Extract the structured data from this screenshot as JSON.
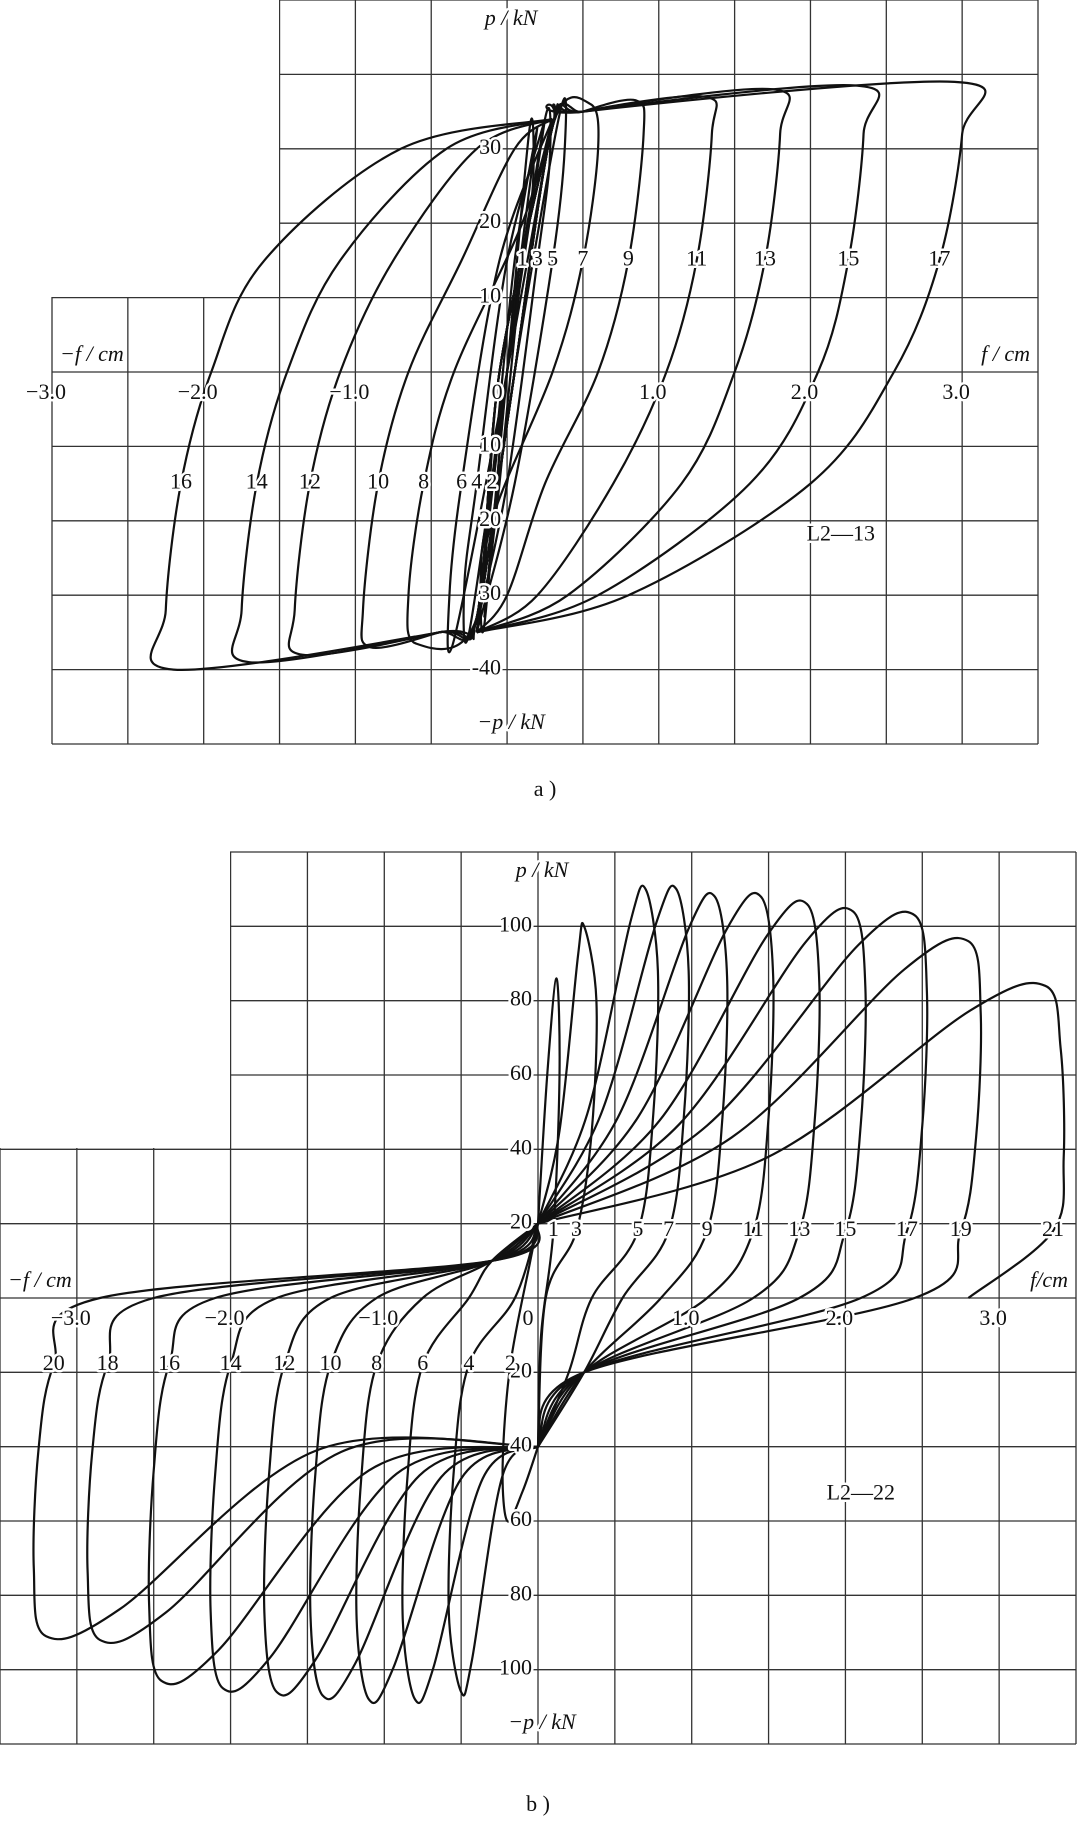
{
  "chart_data": [
    {
      "type": "line",
      "caption": "a )",
      "annotation": "L2—13",
      "color": "#111",
      "y_label": "p / kN",
      "y_label_neg": "−p / kN",
      "x_label_neg": "−f / cm",
      "x_label": "f / cm",
      "xlim": [
        -3.0,
        3.5
      ],
      "ylim": [
        -50,
        50
      ],
      "grid": true,
      "xgrid": [
        -3.0,
        -2.5,
        -2.0,
        -1.5,
        -1.0,
        -0.5,
        0,
        0.5,
        1.0,
        1.5,
        2.0,
        2.5,
        3.0,
        3.5
      ],
      "ygrid": [
        -50,
        -40,
        -30,
        -20,
        -10,
        0,
        10,
        20,
        30,
        40,
        50
      ],
      "xticks": [
        {
          "value": -3.0,
          "label": "−3.0"
        },
        {
          "value": -2.0,
          "label": "−2.0"
        },
        {
          "value": -1.0,
          "label": "−1.0"
        },
        0,
        {
          "value": 1.0,
          "label": "1.0"
        },
        {
          "value": 2.0,
          "label": "2.0"
        },
        {
          "value": 3.0,
          "label": "3.0"
        }
      ],
      "yticks": [
        30,
        20,
        10,
        {
          "value": -10,
          "label": "10"
        },
        {
          "value": -20,
          "label": "20"
        },
        {
          "value": -30,
          "label": "30"
        },
        {
          "value": -40,
          "label": "-40"
        }
      ],
      "series": [
        {
          "name": "1",
          "x": [
            -0.15,
            0.0,
            0.15,
            0.17,
            0.1,
            -0.05,
            -0.15
          ],
          "values": [
            -33,
            0,
            33,
            25,
            15,
            -15,
            -33
          ]
        },
        {
          "name": "2",
          "x": [
            0.2,
            0.0,
            -0.15,
            -0.17,
            -0.1,
            0.05,
            0.2
          ],
          "values": [
            33,
            0,
            -34,
            -25,
            -15,
            15,
            33
          ]
        },
        {
          "name": "3",
          "x": [
            -0.2,
            0.0,
            0.25,
            0.28,
            0.2,
            0.0,
            -0.2
          ],
          "values": [
            -34,
            0,
            34,
            28,
            15,
            -15,
            -34
          ]
        },
        {
          "name": "4",
          "x": [
            0.25,
            0.0,
            -0.25,
            -0.28,
            -0.2,
            0.0,
            0.25
          ],
          "values": [
            34,
            0,
            -35,
            -28,
            -15,
            15,
            34
          ]
        },
        {
          "name": "5",
          "x": [
            -0.2,
            0.05,
            0.35,
            0.38,
            0.3,
            0.05,
            -0.2
          ],
          "values": [
            -35,
            0,
            35,
            30,
            15,
            -15,
            -35
          ]
        },
        {
          "name": "6",
          "x": [
            0.3,
            0.0,
            -0.35,
            -0.38,
            -0.3,
            -0.05,
            0.3
          ],
          "values": [
            34,
            0,
            -36,
            -30,
            -15,
            15,
            34
          ]
        },
        {
          "name": "7",
          "x": [
            -0.2,
            0.05,
            0.3,
            0.55,
            0.6,
            0.5,
            0.3,
            -0.1,
            -0.2
          ],
          "values": [
            -35,
            0,
            33,
            36,
            30,
            15,
            0,
            -20,
            -35
          ]
        },
        {
          "name": "8",
          "x": [
            0.3,
            -0.05,
            -0.2,
            -0.6,
            -0.65,
            -0.55,
            -0.35,
            0.1,
            0.3
          ],
          "values": [
            34,
            0,
            -33,
            -36.5,
            -30,
            -15,
            0,
            20,
            34
          ]
        },
        {
          "name": "9",
          "x": [
            -0.2,
            0.05,
            0.3,
            0.5,
            0.85,
            0.9,
            0.8,
            0.6,
            0.25,
            0.0,
            -0.2
          ],
          "values": [
            -35,
            0,
            33,
            35,
            36.5,
            32,
            15,
            0,
            -15,
            -30,
            -35
          ]
        },
        {
          "name": "10",
          "x": [
            0.3,
            -0.05,
            -0.2,
            -0.45,
            -0.9,
            -0.95,
            -0.85,
            -0.65,
            -0.3,
            0.05,
            0.3
          ],
          "values": [
            34,
            0,
            -33,
            -35,
            -37,
            -32,
            -15,
            0,
            15,
            30,
            34
          ]
        },
        {
          "name": "11",
          "x": [
            -0.2,
            0.05,
            0.3,
            0.5,
            1.3,
            1.35,
            1.25,
            1.05,
            0.7,
            0.2,
            -0.2
          ],
          "values": [
            -35,
            0,
            33,
            35,
            37,
            32,
            15,
            0,
            -15,
            -30,
            -35
          ]
        },
        {
          "name": "12",
          "x": [
            0.3,
            -0.05,
            -0.2,
            -0.45,
            -1.35,
            -1.4,
            -1.3,
            -1.1,
            -0.75,
            -0.2,
            0.3
          ],
          "values": [
            34,
            0,
            -33,
            -35,
            -38,
            -32,
            -15,
            0,
            15,
            30,
            34
          ]
        },
        {
          "name": "13",
          "x": [
            -0.2,
            0.05,
            0.3,
            0.5,
            1.75,
            1.8,
            1.7,
            1.5,
            1.15,
            0.4,
            -0.2
          ],
          "values": [
            -35,
            0,
            33,
            35,
            38,
            32,
            15,
            0,
            -15,
            -30,
            -35
          ]
        },
        {
          "name": "14",
          "x": [
            0.3,
            -0.05,
            -0.2,
            -0.45,
            -1.7,
            -1.75,
            -1.65,
            -1.45,
            -1.1,
            -0.4,
            0.3
          ],
          "values": [
            34,
            0,
            -33,
            -35,
            -39,
            -32,
            -15,
            0,
            15,
            30,
            34
          ]
        },
        {
          "name": "15",
          "x": [
            -0.2,
            0.05,
            0.3,
            0.5,
            2.3,
            2.35,
            2.25,
            2.05,
            1.6,
            0.6,
            -0.2
          ],
          "values": [
            -35,
            0,
            33,
            35,
            38.5,
            32,
            15,
            0,
            -15,
            -30,
            -35
          ]
        },
        {
          "name": "16",
          "x": [
            0.3,
            -0.05,
            -0.2,
            -0.45,
            -2.2,
            -2.25,
            -2.15,
            -1.95,
            -1.6,
            -0.7,
            0.3
          ],
          "values": [
            34,
            0,
            -33,
            -35,
            -40,
            -32,
            -15,
            0,
            15,
            30,
            34
          ]
        },
        {
          "name": "17",
          "x": [
            -0.2,
            0.05,
            0.3,
            0.5,
            2.95,
            3.0,
            2.85,
            2.55,
            2.0,
            0.8,
            -0.2
          ],
          "values": [
            -35,
            0,
            33,
            35,
            39,
            32,
            15,
            0,
            -15,
            -30,
            -35
          ]
        }
      ]
    },
    {
      "type": "line",
      "caption": "b )",
      "annotation": "L2—22",
      "color": "#111",
      "y_label": "p / kN",
      "y_label_neg": "−p / kN",
      "x_label_neg": "−f / cm",
      "x_label": "f/cm",
      "xlim": [
        -3.5,
        3.5
      ],
      "ylim": [
        -120,
        120
      ],
      "grid": true,
      "xgrid": [
        -3.5,
        -3.0,
        -2.5,
        -2.0,
        -1.5,
        -1.0,
        -0.5,
        0,
        0.5,
        1.0,
        1.5,
        2.0,
        2.5,
        3.0,
        3.5
      ],
      "ygrid": [
        -120,
        -100,
        -80,
        -60,
        -40,
        -20,
        0,
        20,
        40,
        60,
        80,
        100,
        120
      ],
      "xticks": [
        {
          "value": -3.0,
          "label": "−3.0"
        },
        {
          "value": -2.0,
          "label": "−2.0"
        },
        {
          "value": -1.0,
          "label": "−1.0"
        },
        0,
        {
          "value": 1.0,
          "label": "1.0"
        },
        {
          "value": 2.0,
          "label": "2.0"
        },
        {
          "value": 3.0,
          "label": "3.0"
        }
      ],
      "yticks": [
        100,
        80,
        60,
        40,
        20,
        {
          "value": -20,
          "label": "20"
        },
        {
          "value": -40,
          "label": "40"
        },
        {
          "value": -60,
          "label": "60"
        },
        {
          "value": -80,
          "label": "80"
        },
        {
          "value": -100,
          "label": "100"
        }
      ],
      "series": [
        {
          "name": "1",
          "x": [
            0,
            0.06,
            0.12,
            0.14,
            0.1,
            0.02,
            0
          ],
          "values": [
            20,
            60,
            86,
            60,
            18,
            -10,
            -40
          ]
        },
        {
          "name": "2",
          "x": [
            0,
            -0.1,
            -0.2,
            -0.23,
            -0.18,
            -0.05,
            0
          ],
          "values": [
            -40,
            -52,
            -60,
            -45,
            -18,
            10,
            20
          ]
        },
        {
          "name": "3",
          "x": [
            0,
            0.14,
            0.26,
            0.3,
            0.38,
            0.35,
            0.25,
            0.05,
            0
          ],
          "values": [
            20,
            45,
            92,
            100,
            80,
            45,
            18,
            0,
            -40
          ]
        },
        {
          "name": "4",
          "x": [
            0,
            -0.23,
            -0.43,
            -0.5,
            -0.58,
            -0.55,
            -0.45,
            -0.15,
            0
          ],
          "values": [
            -40,
            -47.7,
            -97.5,
            -106,
            -84.8,
            -47.7,
            -18,
            0,
            20
          ]
        },
        {
          "name": "5",
          "x": [
            0,
            0.32,
            0.6,
            0.7,
            0.78,
            0.75,
            0.65,
            0.35,
            0.2,
            0
          ],
          "values": [
            20,
            49.5,
            101,
            110,
            88,
            49.5,
            18,
            0,
            -20,
            -40
          ]
        },
        {
          "name": "6",
          "x": [
            0,
            -0.36,
            -0.68,
            -0.8,
            -0.88,
            -0.85,
            -0.75,
            -0.45,
            -0.3,
            0
          ],
          "values": [
            -40,
            -48.6,
            -99.4,
            -108,
            -86.4,
            -48.6,
            -18,
            0,
            10,
            20
          ]
        },
        {
          "name": "7",
          "x": [
            0,
            0.41,
            0.77,
            0.9,
            0.98,
            0.95,
            0.85,
            0.55,
            0.3,
            0
          ],
          "values": [
            20,
            49.5,
            101,
            110,
            88,
            49.5,
            18,
            0,
            -20,
            -40
          ]
        },
        {
          "name": "8",
          "x": [
            0,
            -0.5,
            -0.94,
            -1.1,
            -1.18,
            -1.15,
            -1.05,
            -0.75,
            -0.3,
            0
          ],
          "values": [
            -40,
            -48.6,
            -99.4,
            -108,
            -86.4,
            -48.6,
            -18,
            0,
            10,
            20
          ]
        },
        {
          "name": "9",
          "x": [
            0,
            0.52,
            0.98,
            1.15,
            1.23,
            1.2,
            1.1,
            0.8,
            0.3,
            0
          ],
          "values": [
            20,
            48.6,
            99.4,
            108,
            86.4,
            48.6,
            18,
            0,
            -20,
            -40
          ]
        },
        {
          "name": "10",
          "x": [
            0,
            -0.63,
            -1.19,
            -1.4,
            -1.48,
            -1.45,
            -1.35,
            -1.05,
            -0.3,
            0
          ],
          "values": [
            -40,
            -48.2,
            -98.4,
            -107,
            -85.6,
            -48.2,
            -18,
            0,
            10,
            20
          ]
        },
        {
          "name": "11",
          "x": [
            0,
            0.65,
            1.23,
            1.45,
            1.53,
            1.5,
            1.4,
            1.1,
            0.3,
            0
          ],
          "values": [
            20,
            48.6,
            99.4,
            108,
            86.4,
            48.6,
            18,
            0,
            -20,
            -40
          ]
        },
        {
          "name": "12",
          "x": [
            0,
            -0.77,
            -1.45,
            -1.7,
            -1.78,
            -1.75,
            -1.65,
            -1.35,
            -0.3,
            0
          ],
          "values": [
            -40,
            -47.7,
            -97.5,
            -106,
            -84.8,
            -47.7,
            -18,
            0,
            10,
            20
          ]
        },
        {
          "name": "13",
          "x": [
            0,
            0.79,
            1.49,
            1.75,
            1.83,
            1.8,
            1.7,
            1.4,
            0.3,
            0
          ],
          "values": [
            20,
            47.7,
            97.5,
            106,
            84.8,
            47.7,
            18,
            0,
            -20,
            -40
          ]
        },
        {
          "name": "14",
          "x": [
            0,
            -0.92,
            -1.74,
            -2.05,
            -2.13,
            -2.1,
            -2.0,
            -1.7,
            -0.3,
            0
          ],
          "values": [
            -40,
            -47.3,
            -96.6,
            -105,
            -84,
            -47.3,
            -18,
            0,
            10,
            20
          ]
        },
        {
          "name": "15",
          "x": [
            0,
            0.92,
            1.74,
            2.05,
            2.13,
            2.1,
            2.0,
            1.7,
            0.3,
            0
          ],
          "values": [
            20,
            46.8,
            95.7,
            104,
            83.2,
            46.8,
            18,
            0,
            -20,
            -40
          ]
        },
        {
          "name": "16",
          "x": [
            0,
            -1.1,
            -2.08,
            -2.45,
            -2.53,
            -2.5,
            -2.4,
            -2.1,
            -0.3,
            0
          ],
          "values": [
            -40,
            -46.4,
            -94.8,
            -103,
            -82.4,
            -46.4,
            -18,
            0,
            10,
            20
          ]
        },
        {
          "name": "17",
          "x": [
            0,
            1.1,
            2.08,
            2.45,
            2.53,
            2.5,
            2.4,
            2.1,
            0.3,
            0
          ],
          "values": [
            20,
            46.4,
            94.8,
            103,
            82.4,
            46.4,
            18,
            0,
            -20,
            -40
          ]
        },
        {
          "name": "18",
          "x": [
            0,
            -1.28,
            -2.42,
            -2.85,
            -2.93,
            -2.9,
            -2.8,
            -2.5,
            -0.3,
            0
          ],
          "values": [
            -40,
            -41.4,
            -84.6,
            -92,
            -73.6,
            -41.4,
            -18,
            0,
            10,
            20
          ]
        },
        {
          "name": "19",
          "x": [
            0,
            1.26,
            2.38,
            2.8,
            2.88,
            2.85,
            2.75,
            2.45,
            0.3,
            0
          ],
          "values": [
            20,
            43.2,
            88.3,
            96,
            76.8,
            43.2,
            18,
            0,
            -20,
            -40
          ]
        },
        {
          "name": "20",
          "x": [
            0,
            -1.44,
            -2.72,
            -3.2,
            -3.28,
            -3.25,
            -3.15,
            -2.85,
            -0.3,
            0
          ],
          "values": [
            -40,
            -41,
            -83.7,
            -91,
            -72.8,
            -41,
            -18,
            0,
            10,
            20
          ]
        },
        {
          "name": "21",
          "x": [
            0,
            1.49,
            2.81,
            3.3,
            3.4,
            3.42,
            3.35,
            2.8
          ],
          "values": [
            20,
            37.8,
            77.3,
            84,
            67.2,
            37.8,
            18,
            0
          ]
        }
      ]
    }
  ]
}
